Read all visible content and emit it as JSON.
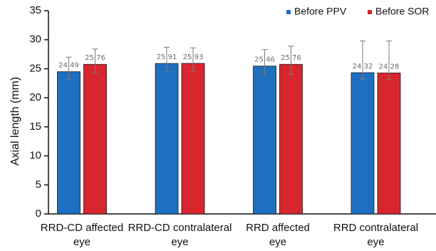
{
  "chart_data": {
    "type": "bar",
    "ylabel": "Axial length (mm)",
    "xlabel": "",
    "ylim": [
      0,
      35
    ],
    "yticks": [
      0,
      5,
      10,
      15,
      20,
      25,
      30,
      35
    ],
    "grid": false,
    "legend_position": "top-right",
    "categories": [
      [
        "RRD-CD affected",
        "eye"
      ],
      [
        "RRD-CD contralateral",
        "eye"
      ],
      [
        "RRD affected",
        "eye"
      ],
      [
        "RRD contralateral",
        "eye"
      ]
    ],
    "series": [
      {
        "name": "Before PPV",
        "color": "#1f6fc1",
        "values": [
          24.49,
          25.91,
          25.46,
          24.32
        ],
        "labels": [
          "24.49",
          "25.91",
          "25.46",
          "24.32"
        ],
        "error_low": [
          23.2,
          24.6,
          23.9,
          23.2
        ],
        "error_high": [
          27.0,
          28.7,
          28.3,
          29.8
        ]
      },
      {
        "name": "Before SOR",
        "color": "#d8262e",
        "values": [
          25.76,
          25.93,
          25.76,
          24.28
        ],
        "labels": [
          "25.76",
          "25.93",
          "25.76",
          "24.28"
        ],
        "error_low": [
          24.3,
          24.6,
          24.0,
          23.1
        ],
        "error_high": [
          28.4,
          28.6,
          28.9,
          29.8
        ]
      }
    ]
  }
}
